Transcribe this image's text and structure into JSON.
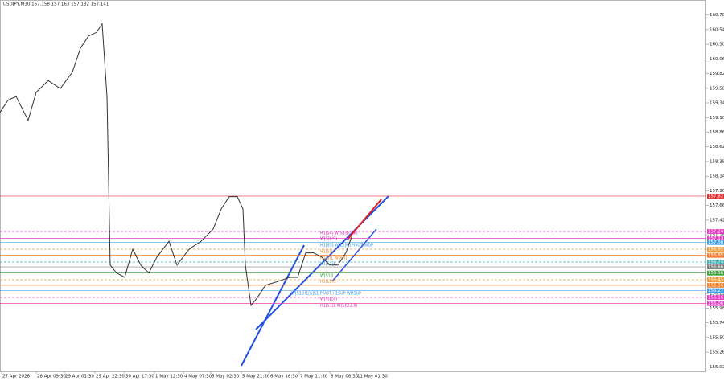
{
  "chart_data": {
    "type": "line",
    "title": "USDJPY,M30  157.158 157.163 157.132 157.141",
    "x": [
      0,
      10,
      20,
      35,
      45,
      60,
      75,
      90,
      100,
      110,
      120,
      127,
      133,
      137,
      145,
      155,
      165,
      175,
      185,
      195,
      210,
      220,
      235,
      250,
      265,
      275,
      285,
      295,
      302,
      305,
      312,
      320,
      330,
      345,
      360,
      370,
      380,
      390,
      400,
      410,
      420,
      430,
      437
    ],
    "series": [
      {
        "name": "USDJPY",
        "color": "#333333",
        "values": [
          159.19,
          159.39,
          159.45,
          159.06,
          159.52,
          159.71,
          159.58,
          159.85,
          160.24,
          160.44,
          160.5,
          160.64,
          159.45,
          156.69,
          156.56,
          156.49,
          156.95,
          156.69,
          156.56,
          156.82,
          157.08,
          156.69,
          156.95,
          157.08,
          157.28,
          157.61,
          157.81,
          157.81,
          157.61,
          156.69,
          156.03,
          156.16,
          156.36,
          156.42,
          156.49,
          156.49,
          156.89,
          156.89,
          156.82,
          156.69,
          156.69,
          156.89,
          157.15
        ]
      }
    ],
    "xlim": [
      0,
      878
    ],
    "xticks": [
      {
        "value": 2,
        "label": "27 Apr 2026"
      },
      {
        "value": 45,
        "label": "28 Apr 09:30"
      },
      {
        "value": 80,
        "label": "29 Apr 01:30"
      },
      {
        "value": 118,
        "label": "29 Apr 22:30"
      },
      {
        "value": 155,
        "label": "30 Apr 17:30"
      },
      {
        "value": 192,
        "label": "1 May 12:30"
      },
      {
        "value": 228,
        "label": "4 May 07:30"
      },
      {
        "value": 262,
        "label": "5 May 02:30"
      },
      {
        "value": 300,
        "label": "5 May 21:30"
      },
      {
        "value": 335,
        "label": "6 May 16:30"
      },
      {
        "value": 372,
        "label": "7 May 11:30"
      },
      {
        "value": 410,
        "label": "8 May 06:30"
      },
      {
        "value": 443,
        "label": "11 May 01:30"
      }
    ],
    "ylim": [
      154.95,
      161.03
    ],
    "yticks": [
      160.785,
      160.545,
      160.305,
      160.065,
      159.825,
      159.585,
      159.345,
      159.105,
      158.865,
      158.625,
      158.385,
      158.145,
      157.905,
      157.665,
      157.425,
      157.185,
      156.945,
      156.705,
      156.465,
      156.225,
      155.985,
      155.745,
      155.505,
      155.265,
      155.025
    ],
    "levels": [
      {
        "value": 157.82,
        "color": "#e03030",
        "dash": false
      },
      {
        "value": 157.24,
        "color": "#e040c0",
        "dash": true
      },
      {
        "value": 157.13,
        "color": "#e040c0",
        "dash": false
      },
      {
        "value": 157.06,
        "color": "#40a0e0",
        "dash": false
      },
      {
        "value": 156.95,
        "color": "#f0a040",
        "dash": true
      },
      {
        "value": 156.85,
        "color": "#f08030",
        "dash": false
      },
      {
        "value": 156.74,
        "color": "#40b0b0",
        "dash": true
      },
      {
        "value": 156.66,
        "color": "#808080",
        "dash": false
      },
      {
        "value": 156.56,
        "color": "#40a040",
        "dash": false
      },
      {
        "value": 156.45,
        "color": "#f0a040",
        "dash": true
      },
      {
        "value": 156.36,
        "color": "#f08030",
        "dash": false
      },
      {
        "value": 156.27,
        "color": "#40a0f0",
        "dash": false
      },
      {
        "value": 156.16,
        "color": "#e040c0",
        "dash": true
      },
      {
        "value": 156.06,
        "color": "#e040c0",
        "dash": false
      }
    ],
    "annotations": [
      "H1[S4] W[S3]L(2.8)",
      "W[S]L(S)",
      "H1[S3] W[L2]H1PIVOT WDP",
      "H1[S]L",
      "H1[S]L WD[R]",
      "H1[S1]L",
      "W[S1]L",
      "H1[L]H1",
      "W[S1]H1[S]S1 PIVOT H1SUP WDSUP",
      "W[S]L(4)",
      "H1[S1]L W[S]L(2.8)"
    ]
  }
}
